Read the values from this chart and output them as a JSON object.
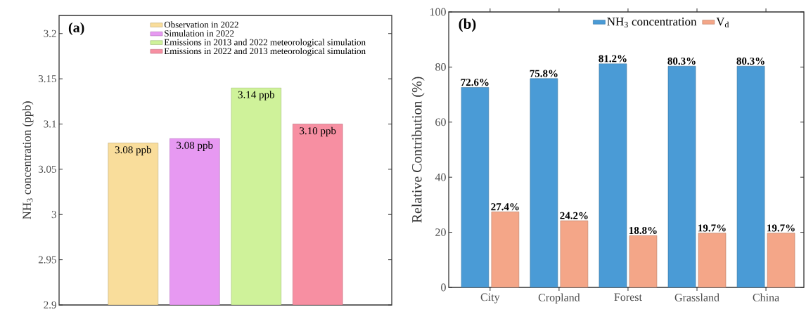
{
  "chart_data": [
    {
      "type": "bar",
      "title": "(a)",
      "ylabel": "NH$_{3}$ concentration (ppb)",
      "categories": [
        null
      ],
      "series": [
        {
          "name": "Observation in 2022",
          "color": "#f9dd9b",
          "values": [
            3.079
          ],
          "value_labels": [
            "3.08 ppb"
          ]
        },
        {
          "name": "Simulation in 2022",
          "color": "#e799f2",
          "values": [
            3.084
          ],
          "value_labels": [
            "3.08 ppb"
          ]
        },
        {
          "name": "Emissions in 2013 and 2022 meteorological simulation",
          "color": "#cff29a",
          "values": [
            3.14
          ],
          "value_labels": [
            "3.14 ppb"
          ]
        },
        {
          "name": "Emissions in 2022 and 2013 meteorological simulation",
          "color": "#f78fa2",
          "values": [
            3.1
          ],
          "value_labels": [
            "3.10 ppb"
          ]
        }
      ],
      "ylim": [
        2.9,
        3.22
      ],
      "yticks": [
        2.9,
        2.95,
        3,
        3.05,
        3.1,
        3.15,
        3.2
      ],
      "legend": "top",
      "tick_labels": "y"
    },
    {
      "type": "bar",
      "title": "(b)",
      "ylabel": "Relative Contribution (%)",
      "categories": [
        "City",
        "Cropland",
        "Forest",
        "Grassland",
        "China"
      ],
      "series": [
        {
          "name": "NH$_{3}$ concentration",
          "color": "#4a9bd6",
          "values": [
            72.6,
            75.8,
            81.2,
            80.3,
            80.3
          ],
          "value_labels": [
            "72.6%",
            "75.8%",
            "81.2%",
            "80.3%",
            "80.3%"
          ]
        },
        {
          "name": "V$_{d}$",
          "color": "#f4a688",
          "values": [
            27.4,
            24.2,
            18.8,
            19.7,
            19.7
          ],
          "value_labels": [
            "27.4%",
            "24.2%",
            "18.8%",
            "19.7%",
            "19.7%"
          ]
        }
      ],
      "ylim": [
        0,
        100
      ],
      "yticks": [
        0,
        20,
        40,
        60,
        80,
        100
      ],
      "legend": "top"
    }
  ]
}
